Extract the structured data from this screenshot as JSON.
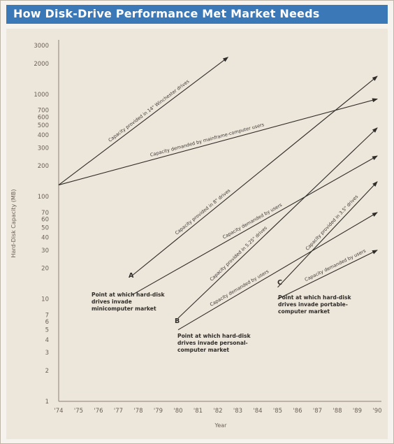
{
  "title": "How Disk-Drive Performance Met Market Needs",
  "colors": {
    "title_bg": "#3a78b8",
    "line": "#2f2c29",
    "plot_bg": "#ede6da"
  },
  "chart_data": {
    "type": "line",
    "title": "How Disk-Drive Performance Met Market Needs",
    "xlabel": "Year",
    "ylabel": "Hard-Disk Capacity (MB)",
    "x_ticks": [
      "'74",
      "'75",
      "'76",
      "'77",
      "'78",
      "'79",
      "'80",
      "'81",
      "'82",
      "'83",
      "'84",
      "'85",
      "'86",
      "'87",
      "'88",
      "'89",
      "'90"
    ],
    "y_ticks": [
      1,
      2,
      3,
      4,
      5,
      6,
      7,
      10,
      20,
      30,
      40,
      50,
      60,
      70,
      100,
      200,
      300,
      400,
      500,
      600,
      700,
      1000,
      2000,
      3000
    ],
    "xlim": [
      1974,
      1990
    ],
    "ylim": [
      1,
      3000
    ],
    "y_scale": "log",
    "grid": false,
    "series": [
      {
        "name": "Capacity provided in 14\" Winchester drives",
        "x": [
          1974,
          1982.5
        ],
        "y": [
          130,
          2300
        ]
      },
      {
        "name": "Capacity demanded by mainframe-computer users",
        "x": [
          1974,
          1990
        ],
        "y": [
          130,
          900
        ]
      },
      {
        "name": "Capacity provided in 8\" drives",
        "x": [
          1977.7,
          1990
        ],
        "y": [
          17,
          1500
        ]
      },
      {
        "name": "Capacity demanded by users",
        "x": [
          1977.7,
          1990
        ],
        "y": [
          11,
          250
        ]
      },
      {
        "name": "Capacity provided in 5.25\" drives",
        "x": [
          1980,
          1990
        ],
        "y": [
          6.5,
          470
        ]
      },
      {
        "name": "Capacity demanded by users",
        "x": [
          1980,
          1990
        ],
        "y": [
          5,
          70
        ]
      },
      {
        "name": "Capacity provided in 3.5\" drives",
        "x": [
          1985,
          1990
        ],
        "y": [
          13,
          140
        ]
      },
      {
        "name": "Capacity demanded by users",
        "x": [
          1985,
          1990
        ],
        "y": [
          10,
          30
        ]
      }
    ],
    "annotations": [
      {
        "letter": "A",
        "lines": [
          "Point at which hard-disk",
          "drives invade",
          "minicomputer market"
        ]
      },
      {
        "letter": "B",
        "lines": [
          "Point at which hard-disk",
          "drives invade personal-",
          "computer market"
        ]
      },
      {
        "letter": "C",
        "lines": [
          "Point at which hard-disk",
          "drives invade portable-",
          "computer market"
        ]
      }
    ]
  }
}
